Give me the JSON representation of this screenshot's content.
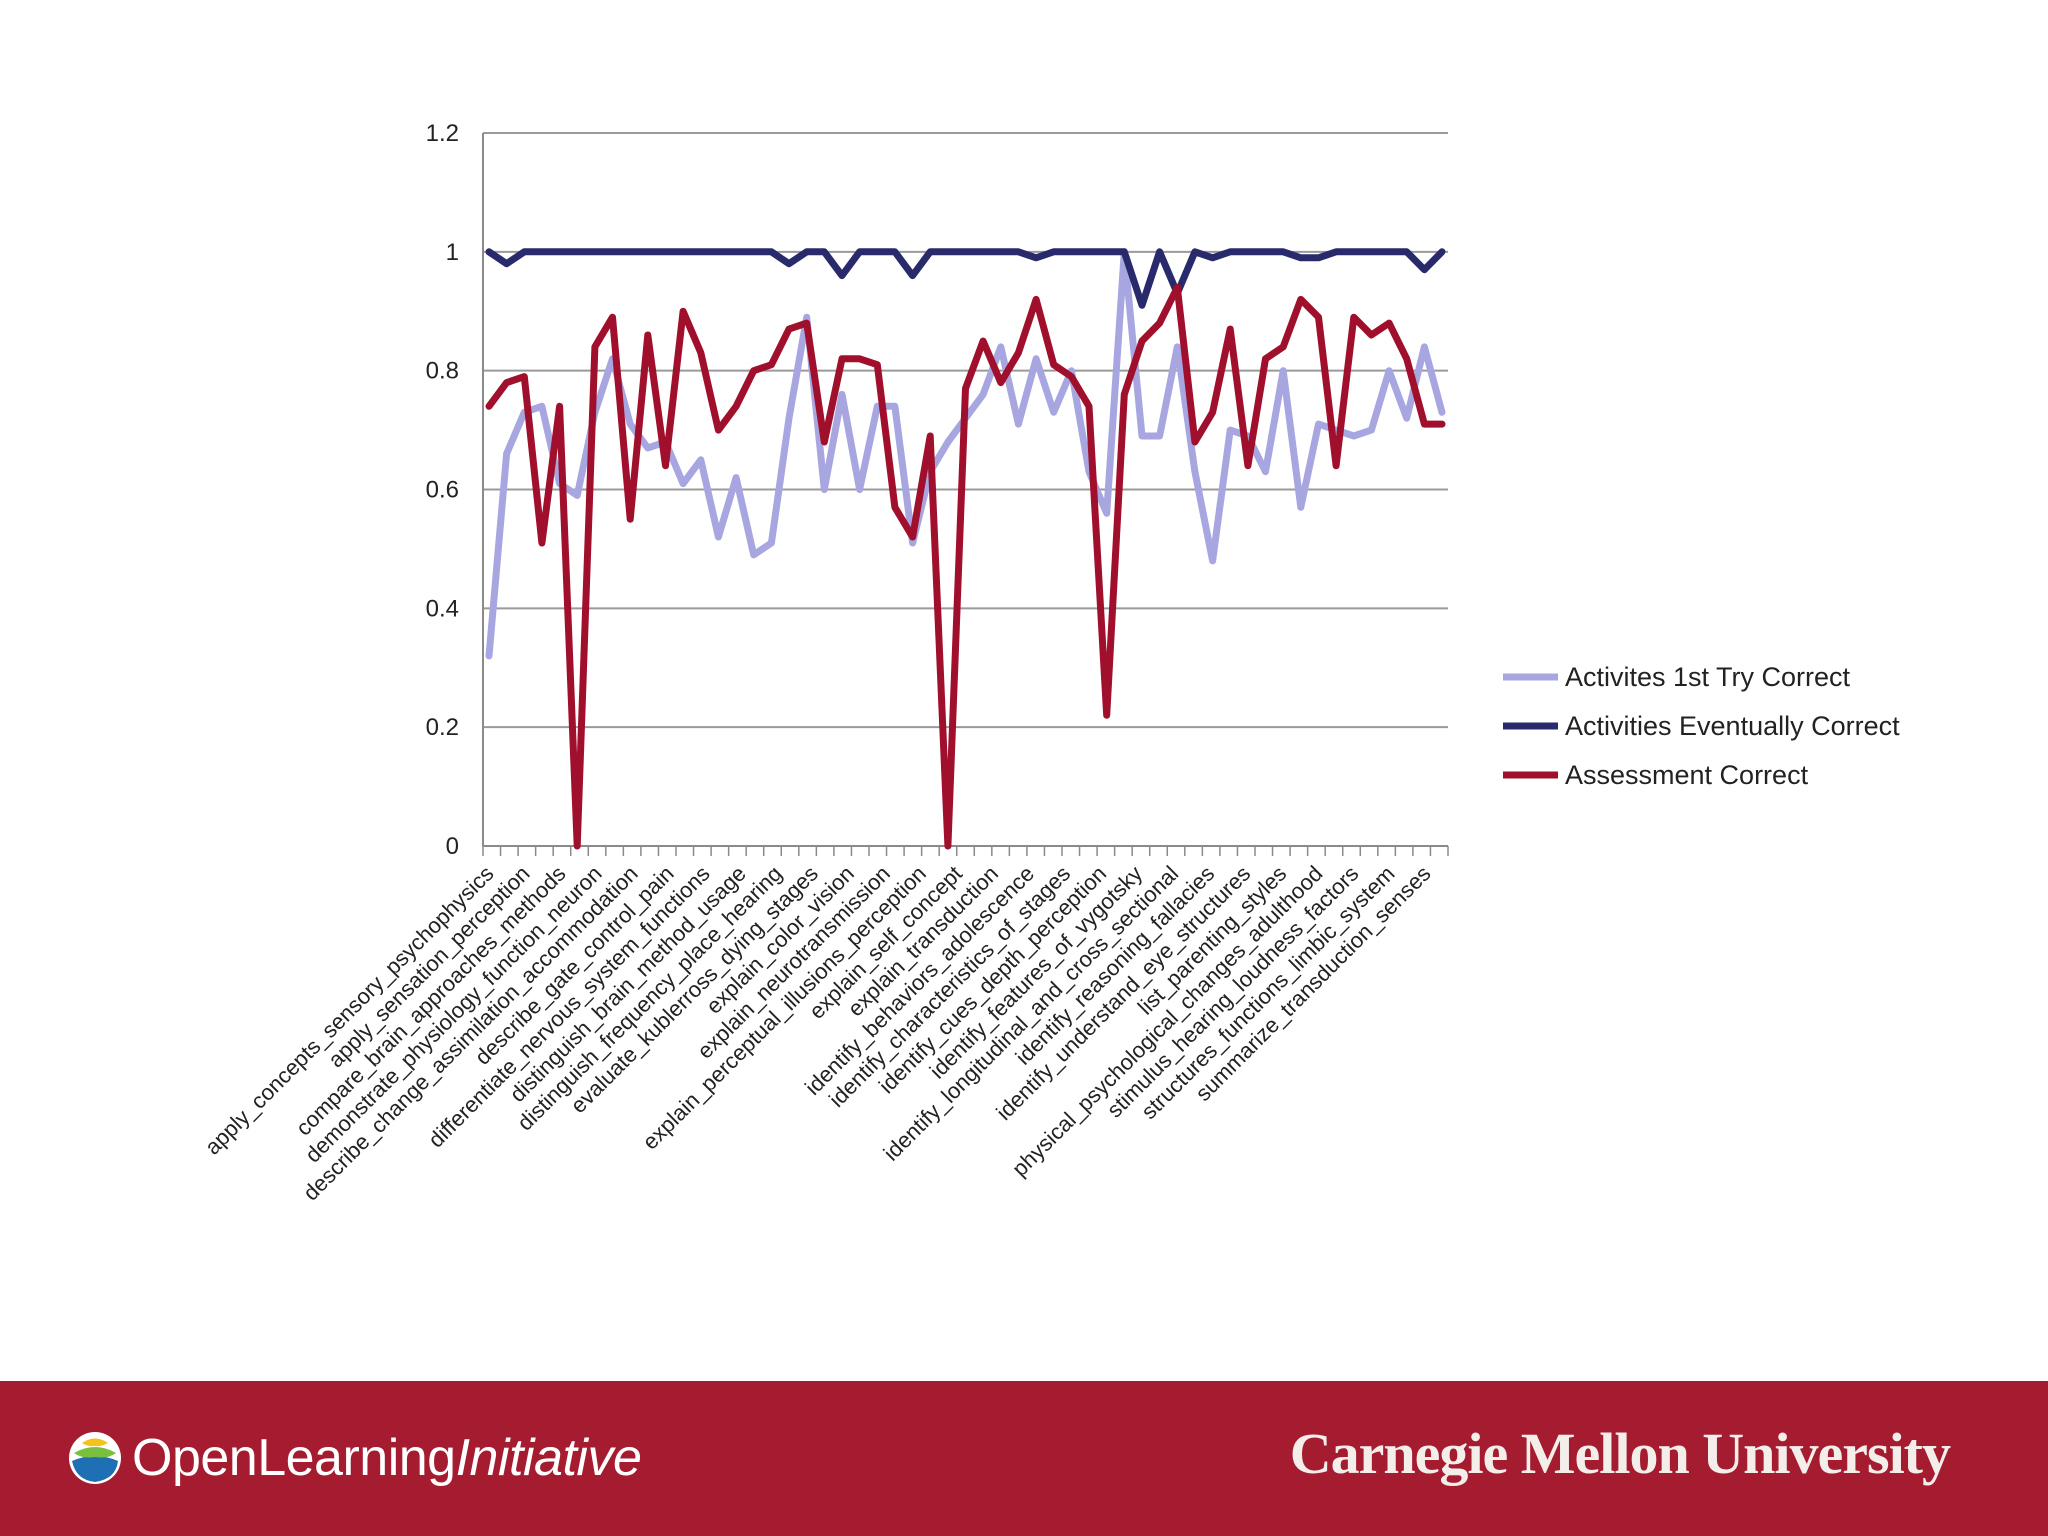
{
  "chart_data": {
    "type": "line",
    "title": "",
    "xlabel": "",
    "ylabel": "",
    "ylim": [
      0,
      1.2
    ],
    "yticks": [
      "0",
      "0.2",
      "0.4",
      "0.6",
      "0.8",
      "1",
      "1.2"
    ],
    "ytick_values": [
      0,
      0.2,
      0.4,
      0.6,
      0.8,
      1.0,
      1.2
    ],
    "grid": true,
    "legend_position": "right",
    "point_count": 55,
    "category_labels": [
      "apply_concepts_sensory_psychophysics",
      "apply_sensation_perception",
      "compare_brain_approaches_methods",
      "demonstrate_physiology_function_neuron",
      "describe_change_assimilation_accommodation",
      "describe_gate_control_pain",
      "differentiate_nervous_system_functions",
      "distinguish_brain_method_usage",
      "distinguish_frequency_place_hearing",
      "evaluate_kublerross_dying_stages",
      "explain_color_vision",
      "explain_neurotransmission",
      "explain_perceptual_illusions_perception",
      "explain_self_concept",
      "explain_transduction",
      "identify_behaviors_adolescence",
      "identify_characteristics_of_stages",
      "identify_cues_depth_perception",
      "identify_features_of_vygotsky",
      "identify_longitudinal_and_cross_sectional",
      "identify_reasoning_fallacies",
      "identify_understand_eye_structures",
      "list_parenting_styles",
      "physical_psychological_changes_adulthood",
      "stimulus_hearing_loudness_factors",
      "structures_functions_limbic_system",
      "summarize_transduction_senses"
    ],
    "series": [
      {
        "name": "Activites 1st Try Correct",
        "color": "#a8a6e0",
        "values": [
          0.32,
          0.66,
          0.73,
          0.74,
          0.61,
          0.59,
          0.73,
          0.82,
          0.71,
          0.67,
          0.68,
          0.61,
          0.65,
          0.52,
          0.62,
          0.49,
          0.51,
          0.72,
          0.89,
          0.6,
          0.76,
          0.6,
          0.74,
          0.74,
          0.51,
          0.63,
          0.68,
          0.72,
          0.76,
          0.84,
          0.71,
          0.82,
          0.73,
          0.8,
          0.63,
          0.56,
          1.0,
          0.69,
          0.69,
          0.84,
          0.63,
          0.48,
          0.7,
          0.69,
          0.63,
          0.8,
          0.57,
          0.71,
          0.7,
          0.69,
          0.7,
          0.8,
          0.72,
          0.84,
          0.73
        ]
      },
      {
        "name": "Activities Eventually Correct",
        "color": "#292a6b",
        "values": [
          1.0,
          0.98,
          1.0,
          1.0,
          1.0,
          1.0,
          1.0,
          1.0,
          1.0,
          1.0,
          1.0,
          1.0,
          1.0,
          1.0,
          1.0,
          1.0,
          1.0,
          0.98,
          1.0,
          1.0,
          0.96,
          1.0,
          1.0,
          1.0,
          0.96,
          1.0,
          1.0,
          1.0,
          1.0,
          1.0,
          1.0,
          0.99,
          1.0,
          1.0,
          1.0,
          1.0,
          1.0,
          0.91,
          1.0,
          0.93,
          1.0,
          0.99,
          1.0,
          1.0,
          1.0,
          1.0,
          0.99,
          0.99,
          1.0,
          1.0,
          1.0,
          1.0,
          1.0,
          0.97,
          1.0
        ]
      },
      {
        "name": "Assessment Correct",
        "color": "#a0102c",
        "values": [
          0.74,
          0.78,
          0.79,
          0.51,
          0.74,
          0.0,
          0.84,
          0.89,
          0.55,
          0.86,
          0.64,
          0.9,
          0.83,
          0.7,
          0.74,
          0.8,
          0.81,
          0.87,
          0.88,
          0.68,
          0.82,
          0.82,
          0.81,
          0.57,
          0.52,
          0.69,
          0.0,
          0.77,
          0.85,
          0.78,
          0.83,
          0.92,
          0.81,
          0.79,
          0.74,
          0.22,
          0.76,
          0.85,
          0.88,
          0.94,
          0.68,
          0.73,
          0.87,
          0.64,
          0.82,
          0.84,
          0.92,
          0.89,
          0.64,
          0.89,
          0.86,
          0.88,
          0.82,
          0.71,
          0.71
        ]
      }
    ]
  },
  "footer": {
    "ol_brand_regular": "OpenLearning",
    "ol_brand_italic": "Initiative",
    "cmu_brand": "Carnegie Mellon University",
    "bar_color": "#a51c30"
  }
}
